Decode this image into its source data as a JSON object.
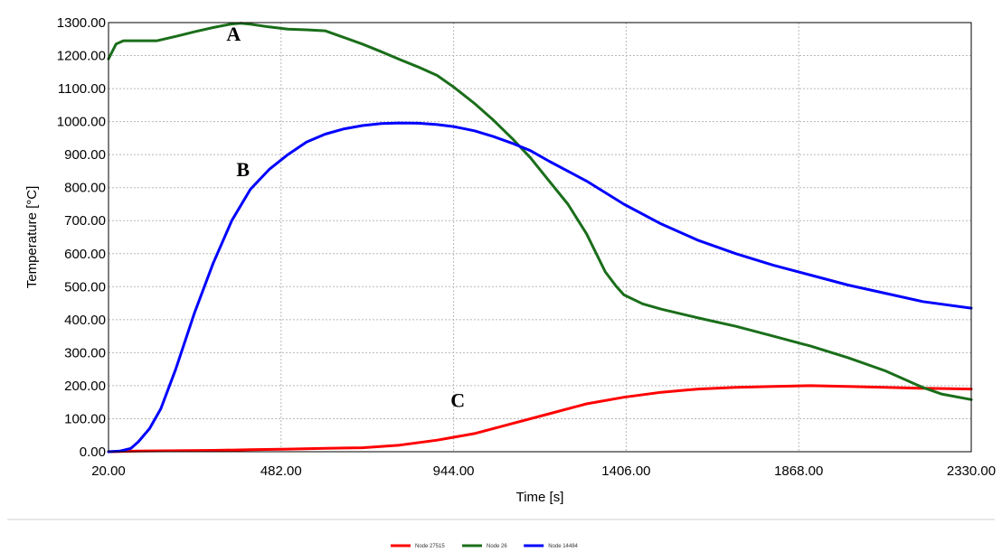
{
  "chart_data": {
    "type": "line",
    "title": "",
    "xlabel": "Time [s]",
    "ylabel": "Temperature [°C]",
    "xlim": [
      20,
      2330
    ],
    "ylim": [
      0,
      1300
    ],
    "x_ticks": [
      20,
      482,
      944,
      1406,
      1868,
      2330
    ],
    "x_tick_labels": [
      "20.00",
      "482.00",
      "944.00",
      "1406.00",
      "1868.00",
      "2330.00"
    ],
    "y_ticks": [
      0,
      100,
      200,
      300,
      400,
      500,
      600,
      700,
      800,
      900,
      1000,
      1100,
      1200,
      1300
    ],
    "y_tick_labels": [
      "0.00",
      "100.00",
      "200.00",
      "300.00",
      "400.00",
      "500.00",
      "600.00",
      "700.00",
      "800.00",
      "900.00",
      "1000.00",
      "1100.00",
      "1200.00",
      "1300.00"
    ],
    "grid": true,
    "legend_position": "bottom-center",
    "series": [
      {
        "name": "Node 27515",
        "color": "#ff0000",
        "x": [
          20,
          100,
          200,
          300,
          400,
          500,
          600,
          700,
          800,
          900,
          1000,
          1100,
          1200,
          1300,
          1400,
          1500,
          1600,
          1700,
          1800,
          1900,
          2000,
          2100,
          2200,
          2330
        ],
        "y": [
          0,
          2,
          3,
          4,
          6,
          8,
          10,
          12,
          20,
          35,
          55,
          85,
          115,
          145,
          165,
          180,
          190,
          195,
          198,
          200,
          198,
          195,
          192,
          190
        ]
      },
      {
        "name": "Node 26",
        "color": "#1a6e1a",
        "x": [
          20,
          40,
          60,
          100,
          150,
          200,
          250,
          300,
          350,
          375,
          400,
          450,
          500,
          550,
          600,
          650,
          700,
          750,
          800,
          850,
          900,
          944,
          1000,
          1050,
          1100,
          1150,
          1200,
          1250,
          1300,
          1350,
          1380,
          1400,
          1450,
          1500,
          1600,
          1700,
          1800,
          1900,
          2000,
          2100,
          2200,
          2250,
          2330
        ],
        "y": [
          1190,
          1235,
          1245,
          1245,
          1245,
          1258,
          1272,
          1285,
          1296,
          1298,
          1295,
          1287,
          1280,
          1278,
          1275,
          1255,
          1235,
          1212,
          1188,
          1165,
          1140,
          1105,
          1055,
          1005,
          950,
          890,
          820,
          750,
          660,
          545,
          500,
          475,
          448,
          432,
          405,
          380,
          350,
          320,
          285,
          245,
          195,
          175,
          158
        ]
      },
      {
        "name": "Node 14484",
        "color": "#0000ff",
        "x": [
          20,
          50,
          80,
          100,
          130,
          160,
          200,
          250,
          300,
          350,
          400,
          450,
          500,
          550,
          600,
          650,
          700,
          750,
          800,
          850,
          900,
          944,
          1000,
          1050,
          1100,
          1150,
          1200,
          1300,
          1400,
          1500,
          1600,
          1700,
          1800,
          1900,
          2000,
          2100,
          2200,
          2330
        ],
        "y": [
          0,
          2,
          10,
          30,
          70,
          130,
          250,
          420,
          570,
          700,
          795,
          855,
          900,
          938,
          962,
          978,
          988,
          994,
          996,
          995,
          991,
          985,
          972,
          955,
          935,
          912,
          880,
          820,
          750,
          690,
          640,
          600,
          565,
          535,
          505,
          480,
          455,
          435
        ]
      }
    ],
    "annotations": [
      {
        "text": "A",
        "x": 355,
        "y": 1245
      },
      {
        "text": "B",
        "x": 380,
        "y": 835
      },
      {
        "text": "C",
        "x": 955,
        "y": 135
      }
    ]
  }
}
